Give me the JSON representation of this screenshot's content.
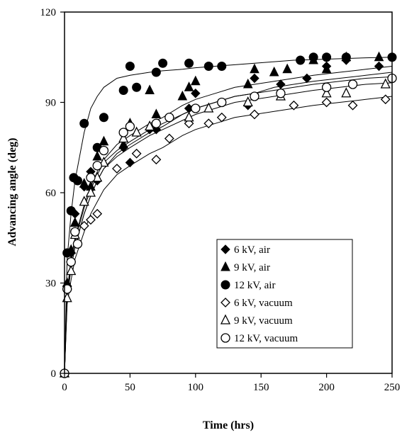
{
  "chart_data": {
    "type": "scatter",
    "title": "",
    "xlabel": "Time (hrs)",
    "ylabel": "Advancing angle (deg)",
    "xlim": [
      0,
      250
    ],
    "ylim": [
      0,
      120
    ],
    "xticks": [
      "0",
      "50",
      "100",
      "150",
      "200",
      "250"
    ],
    "yticks": [
      "0",
      "30",
      "60",
      "90",
      "120"
    ],
    "grid": false,
    "legend_position": "lower-right",
    "series": [
      {
        "name": "6 kV, air",
        "marker": "filled-diamond",
        "color": "#000000",
        "x": [
          0,
          2,
          5,
          8,
          15,
          20,
          25,
          30,
          45,
          50,
          65,
          70,
          95,
          100,
          140,
          145,
          165,
          185,
          200,
          215,
          240
        ],
        "y": [
          0,
          29,
          40,
          53,
          62,
          67,
          64,
          74,
          75,
          70,
          81,
          81,
          88,
          93,
          89,
          98,
          96,
          98,
          102,
          104,
          102
        ],
        "fit": [
          0,
          25,
          35,
          42,
          53,
          59,
          64,
          68,
          73,
          76,
          80,
          82,
          86,
          88,
          90,
          92,
          93,
          95,
          96,
          97,
          98,
          99,
          100
        ]
      },
      {
        "name": "9 kV, air",
        "marker": "filled-triangle",
        "color": "#000000",
        "x": [
          0,
          2,
          5,
          8,
          15,
          20,
          25,
          30,
          45,
          50,
          65,
          70,
          90,
          95,
          100,
          140,
          145,
          160,
          170,
          190,
          200,
          215,
          240
        ],
        "y": [
          0,
          30,
          41,
          50,
          63,
          62,
          72,
          77,
          76,
          83,
          94,
          86,
          92,
          95,
          97,
          96,
          101,
          100,
          101,
          104,
          101,
          105,
          105
        ],
        "fit": [
          0,
          27,
          38,
          45,
          56,
          62,
          67,
          71,
          76,
          79,
          83,
          85,
          89,
          91,
          93,
          95,
          96,
          97,
          98,
          99,
          100,
          101,
          102
        ]
      },
      {
        "name": "12 kV, air",
        "marker": "filled-circle",
        "color": "#000000",
        "x": [
          0,
          2,
          5,
          7,
          10,
          15,
          25,
          30,
          45,
          50,
          55,
          70,
          75,
          95,
          110,
          120,
          180,
          190,
          200,
          215,
          250
        ],
        "y": [
          0,
          40,
          54,
          65,
          64,
          83,
          75,
          85,
          94,
          102,
          95,
          100,
          103,
          103,
          102,
          102,
          104,
          105,
          105,
          105,
          105
        ],
        "fit": [
          0,
          38,
          53,
          64,
          80,
          88,
          92,
          95,
          98,
          99,
          100,
          100.5,
          101,
          101.5,
          102,
          102.5,
          103,
          103.5,
          104,
          104.2,
          104.5,
          104.8,
          105
        ]
      },
      {
        "name": "6 kV, vacuum",
        "marker": "open-diamond",
        "color": "#000000",
        "x": [
          0,
          2,
          5,
          10,
          15,
          20,
          25,
          40,
          55,
          70,
          80,
          95,
          110,
          120,
          145,
          175,
          200,
          220,
          245
        ],
        "y": [
          0,
          28,
          37,
          43,
          49,
          51,
          53,
          68,
          73,
          71,
          78,
          83,
          83,
          85,
          86,
          89,
          90,
          89,
          91
        ],
        "fit": [
          0,
          23,
          31,
          38,
          47,
          53,
          57,
          61,
          66,
          69,
          73,
          75,
          79,
          81,
          83,
          85,
          86,
          87,
          88,
          89,
          90,
          91,
          92
        ]
      },
      {
        "name": "9 kV, vacuum",
        "marker": "open-triangle",
        "color": "#000000",
        "x": [
          0,
          2,
          5,
          8,
          15,
          20,
          25,
          30,
          45,
          55,
          65,
          95,
          110,
          140,
          165,
          200,
          215,
          245
        ],
        "y": [
          0,
          25,
          34,
          46,
          57,
          60,
          65,
          70,
          78,
          80,
          82,
          85,
          88,
          90,
          92,
          93,
          93,
          96
        ],
        "fit": [
          0,
          25,
          35,
          42,
          53,
          59,
          64,
          68,
          72,
          75,
          79,
          81,
          84,
          86,
          88,
          90,
          91,
          92,
          93,
          94,
          95,
          96,
          96.5
        ]
      },
      {
        "name": "12 kV, vacuum",
        "marker": "open-circle",
        "color": "#000000",
        "x": [
          0,
          2,
          5,
          8,
          10,
          20,
          25,
          30,
          45,
          50,
          70,
          80,
          100,
          120,
          145,
          165,
          200,
          220,
          250
        ],
        "y": [
          0,
          28,
          37,
          47,
          43,
          65,
          69,
          74,
          80,
          82,
          83,
          85,
          88,
          90,
          92,
          93,
          95,
          96,
          98
        ],
        "fit": [
          0,
          26,
          37,
          44,
          55,
          61,
          66,
          70,
          74,
          77,
          81,
          83,
          86,
          88,
          90,
          92,
          93,
          94,
          95,
          96,
          97,
          98,
          98.5
        ]
      }
    ],
    "fit_x": [
      0,
      2,
      5,
      8,
      15,
      20,
      25,
      30,
      40,
      50,
      65,
      75,
      90,
      100,
      115,
      130,
      145,
      160,
      175,
      190,
      210,
      230,
      250
    ]
  }
}
